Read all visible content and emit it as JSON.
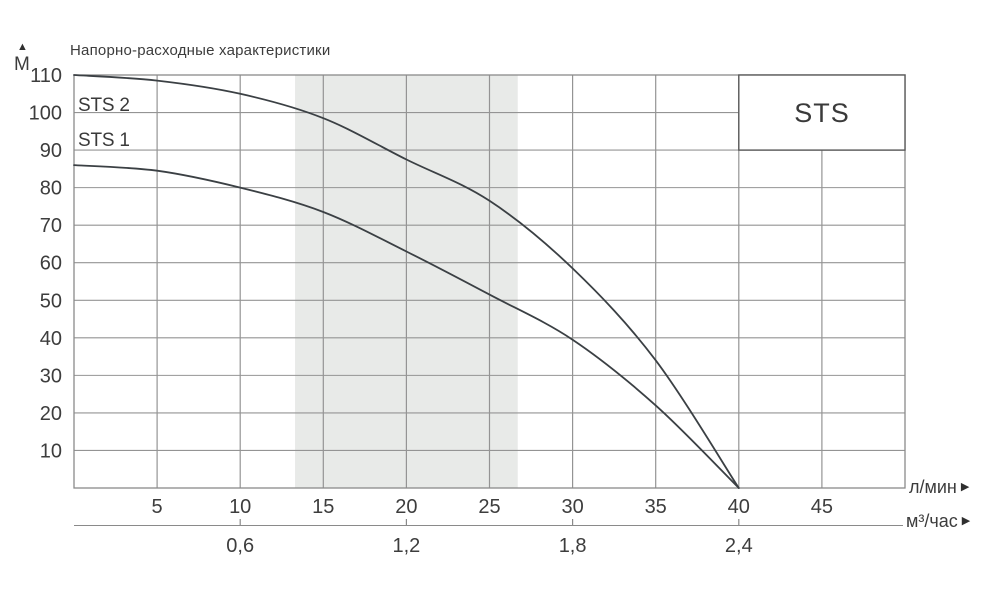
{
  "chart_data": {
    "type": "line",
    "title": "Напорно-расходные характеристики",
    "box_label": "STS",
    "y_axis": {
      "unit": "М",
      "ticks": [
        110,
        100,
        90,
        80,
        70,
        60,
        50,
        40,
        30,
        20,
        10
      ],
      "range": [
        0,
        110
      ]
    },
    "x_axis": {
      "unit": "л/мин",
      "ticks": [
        5,
        10,
        15,
        20,
        25,
        30,
        35,
        40,
        45
      ],
      "range": [
        0,
        50
      ]
    },
    "x_axis_secondary": {
      "unit": "м³/час",
      "ticks": [
        {
          "q": 10,
          "label": "0,6"
        },
        {
          "q": 20,
          "label": "1,2"
        },
        {
          "q": 30,
          "label": "1,8"
        },
        {
          "q": 40,
          "label": "2,4"
        }
      ]
    },
    "recommended_band": {
      "from_q": 13.3,
      "to_q": 26.7
    },
    "series": [
      {
        "name": "STS 2",
        "points": [
          [
            0,
            110
          ],
          [
            5,
            108.5
          ],
          [
            10,
            105
          ],
          [
            15,
            98.5
          ],
          [
            20,
            87.5
          ],
          [
            25,
            76.5
          ],
          [
            30,
            58.5
          ],
          [
            35,
            34
          ],
          [
            40,
            0
          ]
        ]
      },
      {
        "name": "STS 1",
        "points": [
          [
            0,
            86
          ],
          [
            5,
            84.5
          ],
          [
            10,
            80
          ],
          [
            15,
            73.5
          ],
          [
            20,
            63
          ],
          [
            25,
            51.5
          ],
          [
            30,
            39.5
          ],
          [
            35,
            22
          ],
          [
            40,
            0
          ]
        ]
      }
    ],
    "grid": true,
    "legend_position": "top-right-box"
  },
  "colors": {
    "background": "#ffffff",
    "grid": "#949494",
    "frame": "#8a8a8a",
    "curve": "#3b4044",
    "band": "#e8eae8",
    "text": "#3c3c3c",
    "box_border": "#5a5a5a",
    "box_fill": "#ffffff"
  }
}
